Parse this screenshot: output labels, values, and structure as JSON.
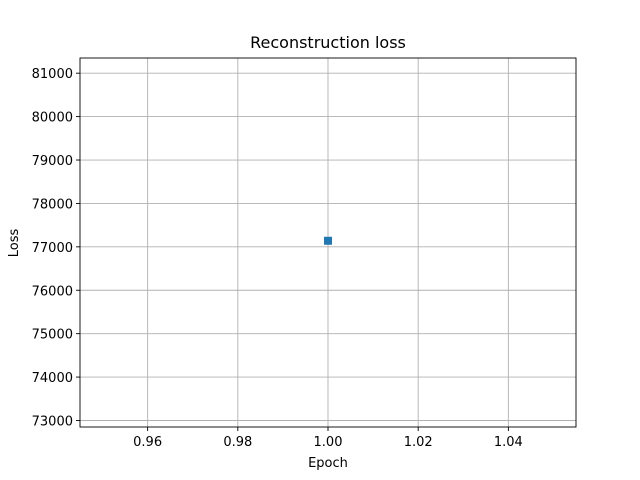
{
  "chart_data": {
    "type": "scatter",
    "title": "Reconstruction loss",
    "xlabel": "Epoch",
    "ylabel": "Loss",
    "xlim": [
      0.945,
      1.055
    ],
    "ylim": [
      72850,
      81350
    ],
    "xticks": [
      0.96,
      0.98,
      1.0,
      1.02,
      1.04
    ],
    "xtick_labels": [
      "0.96",
      "0.98",
      "1.00",
      "1.02",
      "1.04"
    ],
    "yticks": [
      73000,
      74000,
      75000,
      76000,
      77000,
      78000,
      79000,
      80000,
      81000
    ],
    "ytick_labels": [
      "73000",
      "74000",
      "75000",
      "76000",
      "77000",
      "78000",
      "79000",
      "80000",
      "81000"
    ],
    "grid": true,
    "marker": "square",
    "color": "#1f77b4",
    "series": [
      {
        "x": [
          1.0
        ],
        "y": [
          77140
        ]
      }
    ]
  }
}
